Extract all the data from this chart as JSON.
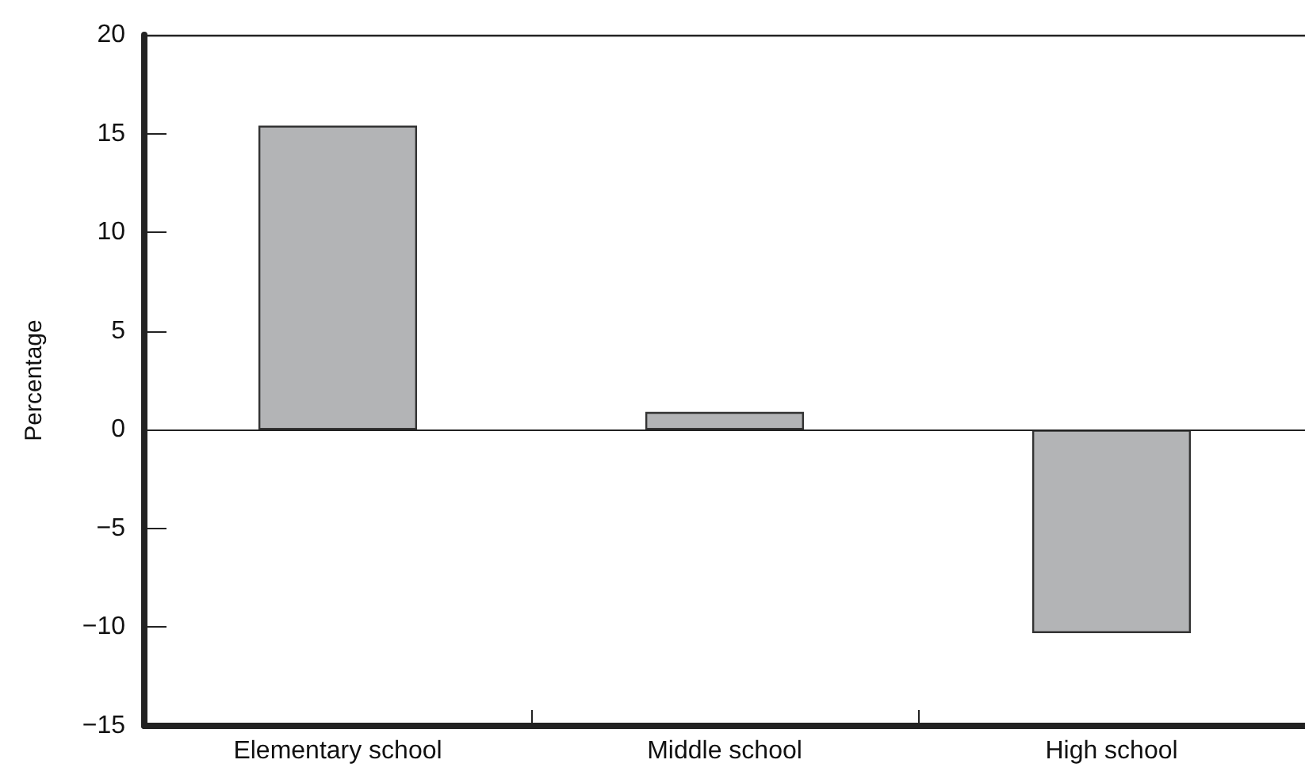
{
  "chart_data": {
    "type": "bar",
    "ylabel": "Percentage",
    "categories": [
      "Elementary school",
      "Middle school",
      "High school"
    ],
    "values": [
      15.4,
      0.9,
      -10.3
    ],
    "color": "#b3b4b6",
    "ylim": [
      -15,
      20
    ],
    "yticks": [
      -15,
      -10,
      -5,
      0,
      5,
      10,
      15,
      20
    ],
    "grid": false,
    "ref_lines": [
      {
        "axis": "y",
        "value": 0,
        "color": "#222222"
      }
    ]
  }
}
